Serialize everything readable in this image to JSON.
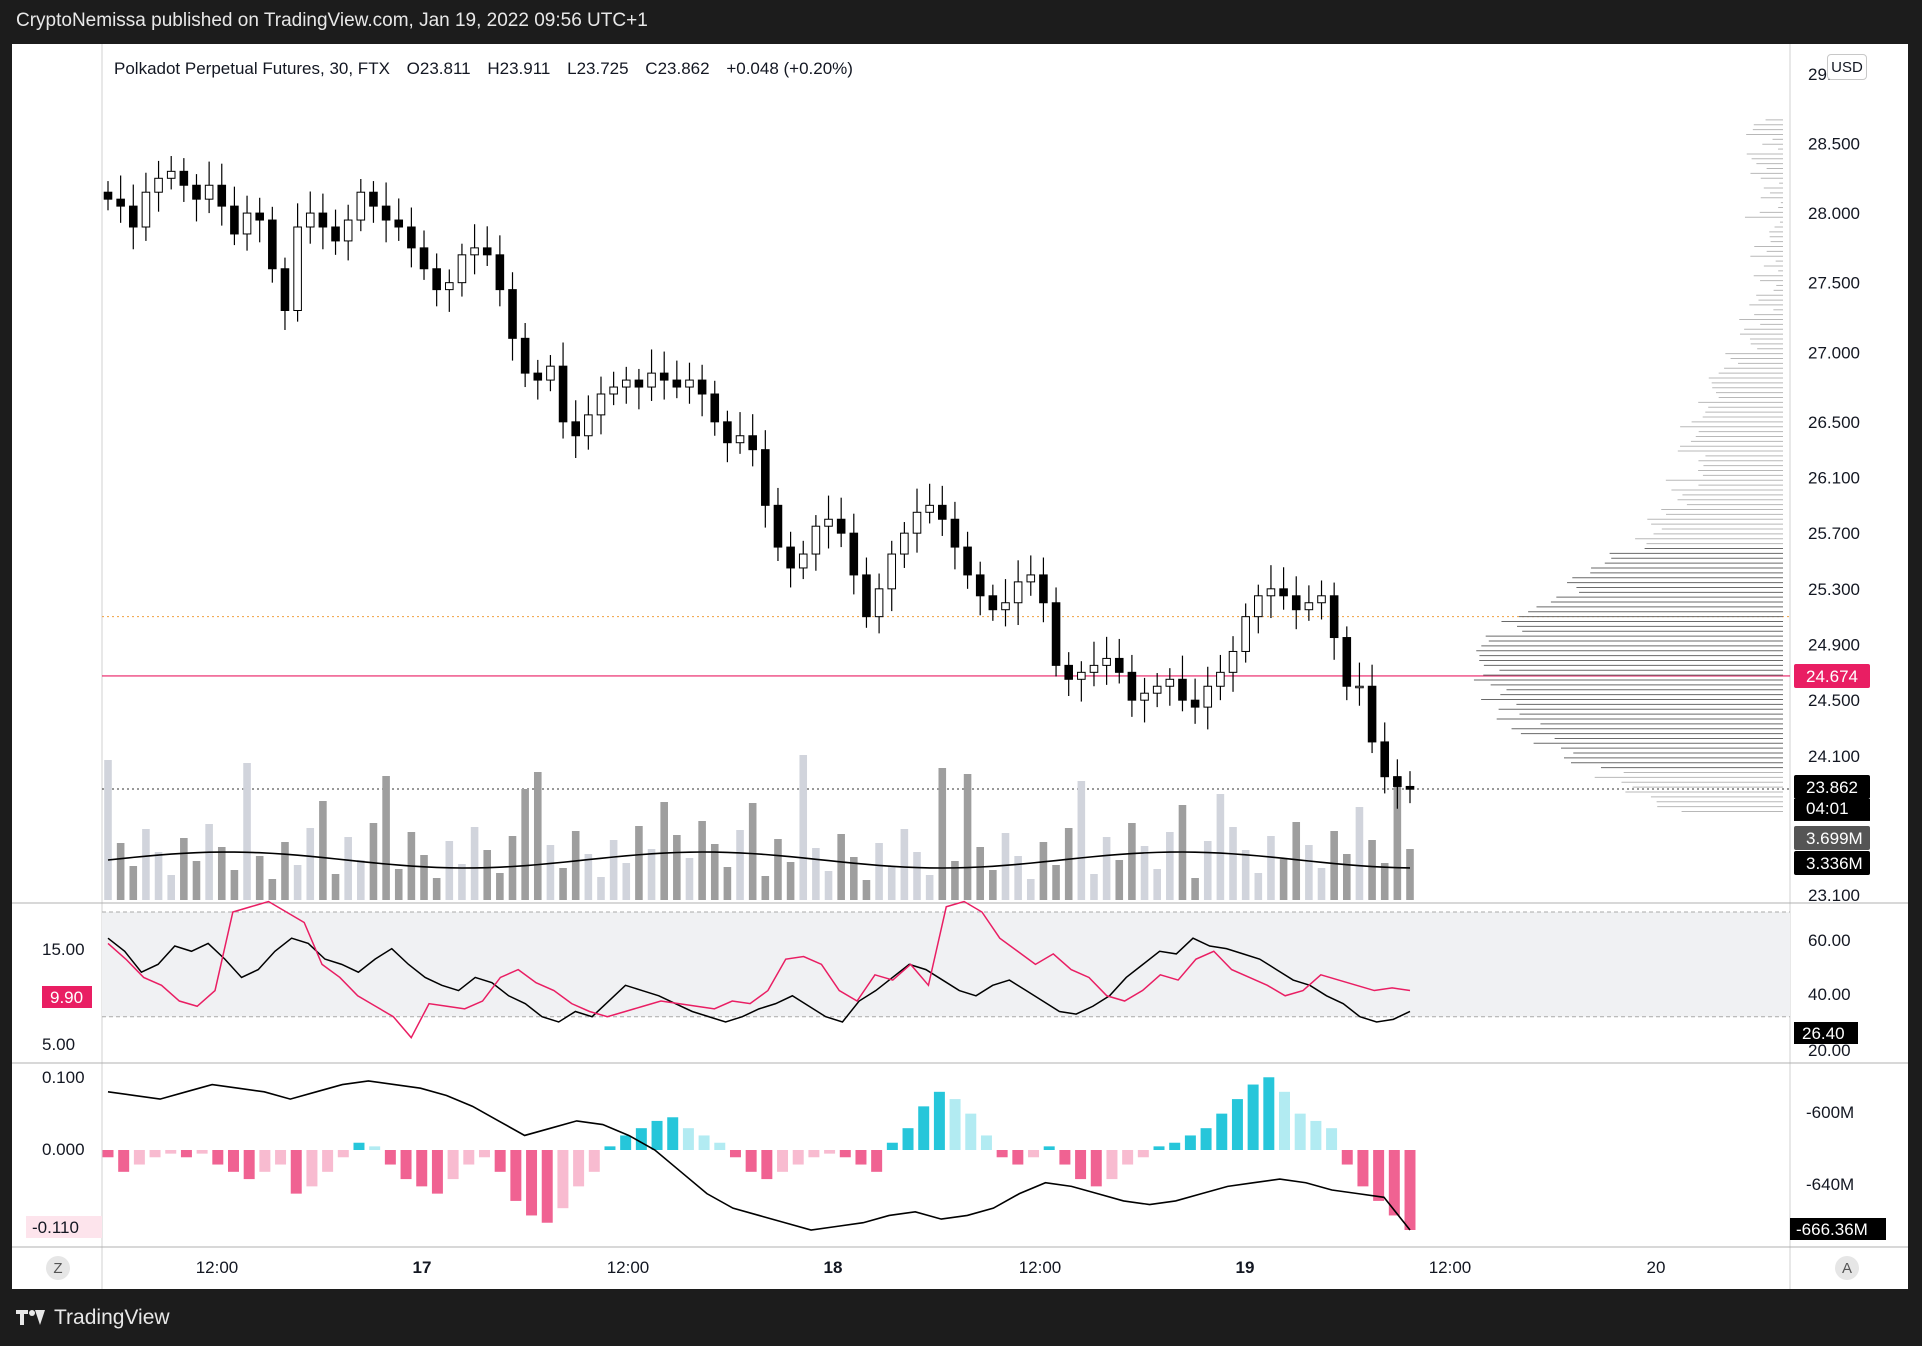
{
  "header": {
    "published": "CryptoNemissa published on TradingView.com, Jan 19, 2022 09:56 UTC+1",
    "symbol": "Polkadot Perpetual Futures, 30, FTX",
    "open": "O23.811",
    "high": "H23.911",
    "low": "L23.725",
    "close": "C23.862",
    "change": "+0.048 (+0.20%)"
  },
  "footer": {
    "brand": "TradingView"
  },
  "buttons": {
    "currency": "USD",
    "z": "Z",
    "auto": "A"
  },
  "colors": {
    "bg_dark": "#1c1c1c",
    "candle_up": "#ffffff",
    "candle_down": "#000000",
    "accent_pink": "#e91e63",
    "macd_pos": "#26c6da",
    "macd_neg": "#f06292",
    "volume_light": "#d1d4dc",
    "volume_dark": "#9e9e9e"
  },
  "chart_data": [
    {
      "type": "candlestick",
      "name": "price",
      "x_tick_labels": [
        "12:00",
        "17",
        "12:00",
        "18",
        "12:00",
        "19",
        "12:00",
        "20"
      ],
      "price_axis_labels": [
        "29.100",
        "28.500",
        "28.000",
        "27.500",
        "27.000",
        "26.500",
        "26.100",
        "25.700",
        "25.300",
        "24.900",
        "24.500",
        "24.100",
        "23.100"
      ],
      "ylim": [
        23.1,
        29.1
      ],
      "close_path": [
        28.1,
        28.05,
        27.9,
        28.15,
        28.25,
        28.3,
        28.2,
        28.1,
        28.2,
        28.05,
        27.85,
        28.0,
        27.95,
        27.6,
        27.3,
        27.9,
        28.0,
        27.9,
        27.8,
        27.95,
        28.15,
        28.05,
        27.95,
        27.9,
        27.75,
        27.6,
        27.45,
        27.5,
        27.7,
        27.75,
        27.7,
        27.45,
        27.1,
        26.85,
        26.8,
        26.9,
        26.5,
        26.4,
        26.55,
        26.7,
        26.75,
        26.8,
        26.75,
        26.85,
        26.8,
        26.75,
        26.8,
        26.7,
        26.5,
        26.35,
        26.4,
        26.3,
        25.9,
        25.6,
        25.45,
        25.55,
        25.75,
        25.8,
        25.7,
        25.4,
        25.1,
        25.3,
        25.55,
        25.7,
        25.85,
        25.9,
        25.8,
        25.6,
        25.4,
        25.25,
        25.15,
        25.2,
        25.35,
        25.4,
        25.2,
        24.75,
        24.65,
        24.7,
        24.75,
        24.8,
        24.7,
        24.5,
        24.55,
        24.6,
        24.65,
        24.5,
        24.45,
        24.6,
        24.7,
        24.85,
        25.1,
        25.25,
        25.3,
        25.25,
        25.15,
        25.2,
        25.25,
        24.95,
        24.6,
        24.6,
        24.2,
        23.95,
        23.88,
        23.86
      ],
      "last_price": {
        "value": "23.862",
        "countdown": "04:01"
      },
      "horizontal_level": {
        "value": "24.674",
        "color": "#e91e63"
      },
      "volume_labels": [
        "3.699M",
        "3.336M"
      ],
      "volume_profile": "right-side horizontal histogram"
    },
    {
      "type": "line",
      "name": "oscillator",
      "left_axis_labels": [
        "15.00",
        "9.90",
        "5.00"
      ],
      "right_axis_labels": [
        "60.00",
        "40.00",
        "26.40",
        "20.00"
      ],
      "current_left": "9.90",
      "current_right": "26.40",
      "band": [
        30,
        70
      ],
      "series": [
        {
          "name": "",
          "color": "#000000",
          "values": [
            60,
            55,
            47,
            50,
            57,
            55,
            58,
            52,
            45,
            48,
            55,
            60,
            58,
            52,
            50,
            47,
            52,
            56,
            50,
            45,
            42,
            40,
            45,
            43,
            38,
            35,
            30,
            28,
            32,
            30,
            36,
            42,
            40,
            38,
            35,
            32,
            30,
            28,
            30,
            33,
            35,
            38,
            34,
            30,
            28,
            36,
            40,
            45,
            50,
            48,
            44,
            40,
            38,
            42,
            44,
            40,
            36,
            32,
            31,
            34,
            38,
            45,
            50,
            55,
            54,
            60,
            57,
            56,
            54,
            52,
            48,
            44,
            42,
            38,
            35,
            30,
            28,
            29,
            32
          ]
        },
        {
          "name": "",
          "color": "#e91e63",
          "values": [
            58,
            52,
            45,
            42,
            36,
            34,
            40,
            70,
            72,
            74,
            70,
            66,
            50,
            45,
            38,
            34,
            30,
            22,
            35,
            34,
            33,
            36,
            45,
            48,
            43,
            40,
            35,
            32,
            30,
            32,
            34,
            36,
            35,
            34,
            33,
            36,
            35,
            40,
            52,
            53,
            50,
            40,
            36,
            46,
            44,
            50,
            42,
            72,
            74,
            70,
            60,
            55,
            50,
            54,
            48,
            45,
            38,
            36,
            40,
            46,
            44,
            52,
            55,
            48,
            45,
            42,
            38,
            40,
            46,
            44,
            42,
            40,
            41,
            40
          ]
        }
      ]
    },
    {
      "type": "bar",
      "name": "macd",
      "left_axis_labels": [
        "0.100",
        "0.000",
        "-0.110"
      ],
      "right_axis_labels": [
        "-600M",
        "-640M",
        "-666.36M"
      ],
      "current_left": "-0.110",
      "current_right": "-666.36M",
      "histogram": [
        -0.01,
        -0.03,
        -0.02,
        -0.01,
        -0.005,
        -0.01,
        -0.005,
        -0.02,
        -0.03,
        -0.04,
        -0.03,
        -0.02,
        -0.06,
        -0.05,
        -0.03,
        -0.01,
        0.01,
        0.005,
        -0.02,
        -0.04,
        -0.05,
        -0.06,
        -0.04,
        -0.02,
        -0.01,
        -0.03,
        -0.07,
        -0.09,
        -0.1,
        -0.08,
        -0.05,
        -0.03,
        0.005,
        0.02,
        0.03,
        0.04,
        0.045,
        0.03,
        0.02,
        0.01,
        -0.01,
        -0.03,
        -0.04,
        -0.03,
        -0.02,
        -0.01,
        -0.005,
        -0.01,
        -0.02,
        -0.03,
        0.01,
        0.03,
        0.06,
        0.08,
        0.07,
        0.05,
        0.02,
        -0.01,
        -0.02,
        -0.01,
        0.005,
        -0.02,
        -0.04,
        -0.05,
        -0.04,
        -0.02,
        -0.01,
        0.005,
        0.01,
        0.02,
        0.03,
        0.05,
        0.07,
        0.09,
        0.1,
        0.08,
        0.05,
        0.04,
        0.03,
        -0.02,
        -0.05,
        -0.07,
        -0.09,
        -0.11
      ],
      "line_values": [
        0.08,
        0.075,
        0.07,
        0.08,
        0.09,
        0.085,
        0.08,
        0.07,
        0.08,
        0.09,
        0.095,
        0.09,
        0.085,
        0.075,
        0.06,
        0.04,
        0.02,
        0.03,
        0.04,
        0.035,
        0.02,
        0.0,
        -0.03,
        -0.06,
        -0.08,
        -0.09,
        -0.1,
        -0.11,
        -0.105,
        -0.1,
        -0.09,
        -0.085,
        -0.095,
        -0.09,
        -0.08,
        -0.06,
        -0.045,
        -0.05,
        -0.06,
        -0.07,
        -0.075,
        -0.07,
        -0.06,
        -0.05,
        -0.045,
        -0.04,
        -0.045,
        -0.055,
        -0.06,
        -0.065,
        -0.11
      ]
    }
  ]
}
